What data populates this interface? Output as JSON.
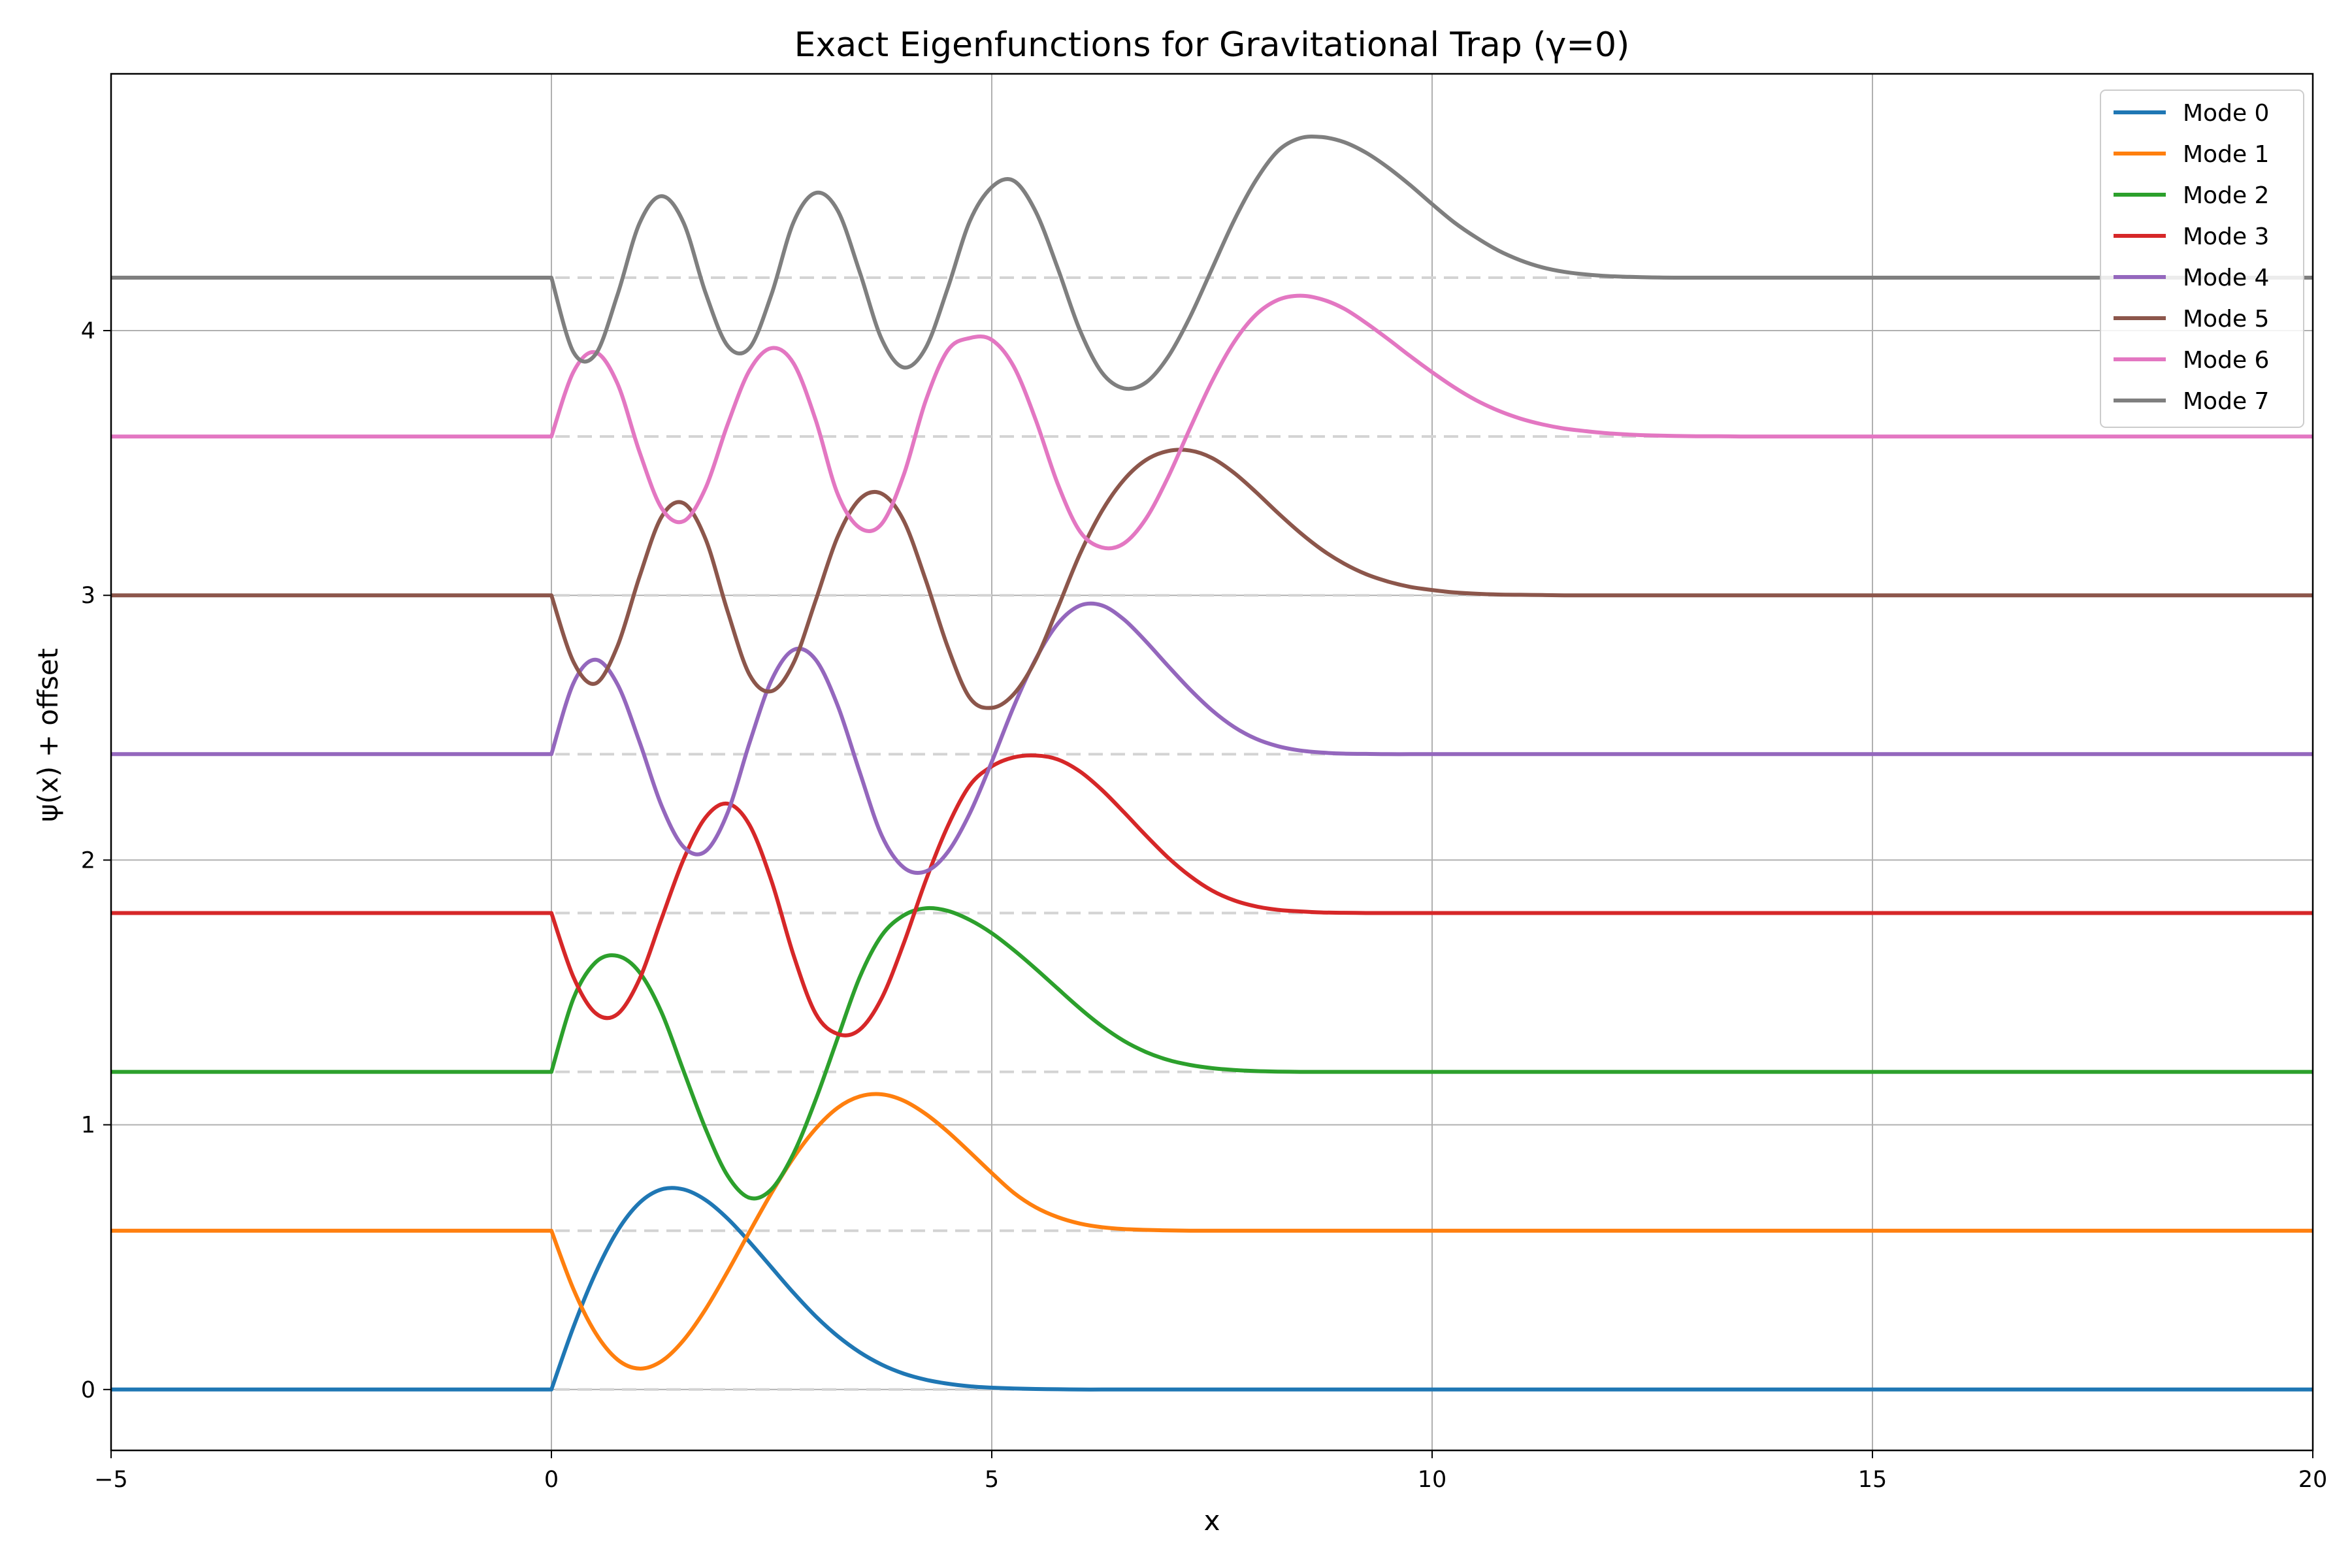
{
  "chart_data": {
    "type": "line",
    "title": "Exact Eigenfunctions for Gravitational Trap (γ=0)",
    "xlabel": "x",
    "ylabel": "ψ(x) + offset",
    "xlim": [
      -5,
      20
    ],
    "ylim": [
      -0.23,
      4.97
    ],
    "xticks": [
      -5,
      0,
      5,
      10,
      15,
      20
    ],
    "xtick_labels": [
      "−5",
      "0",
      "5",
      "10",
      "15",
      "20"
    ],
    "yticks": [
      0,
      1,
      2,
      3,
      4
    ],
    "ytick_labels": [
      "0",
      "1",
      "2",
      "3",
      "4"
    ],
    "grid": true,
    "legend_position": "top-right",
    "baseline_style": "dashed light gray line at each series offset",
    "x": [
      -5,
      -0.001,
      0,
      0.25,
      0.5,
      0.75,
      1.0,
      1.25,
      1.5,
      1.75,
      2.0,
      2.25,
      2.5,
      2.75,
      3.0,
      3.25,
      3.5,
      3.75,
      4.0,
      4.25,
      4.5,
      4.75,
      5.0,
      5.25,
      5.5,
      5.75,
      6.0,
      6.25,
      6.5,
      6.75,
      7.0,
      7.25,
      7.5,
      7.75,
      8.0,
      8.25,
      8.5,
      8.75,
      9.0,
      9.25,
      9.5,
      9.75,
      10.0,
      10.25,
      10.5,
      10.75,
      11.0,
      11.25,
      11.5,
      11.75,
      12.0,
      12.25,
      12.5,
      12.75,
      13.0,
      13.25,
      13.5,
      13.75,
      14.0,
      14.25,
      14.5,
      14.75,
      15.0,
      15.25,
      15.5,
      15.75,
      16.0,
      16.25,
      16.5,
      16.75,
      17.0,
      17.25,
      17.5,
      17.75,
      18.0,
      18.25,
      18.5,
      18.75,
      19.0,
      19.25,
      19.5,
      19.75,
      20.0
    ],
    "series": [
      {
        "name": "Mode 0",
        "offset": 0.0,
        "color": "#1f77b4",
        "values": [
          0,
          0,
          0,
          0.236,
          0.439,
          0.599,
          0.705,
          0.756,
          0.756,
          0.716,
          0.646,
          0.557,
          0.461,
          0.365,
          0.277,
          0.202,
          0.141,
          0.094,
          0.06,
          0.037,
          0.022,
          0.012,
          0.007,
          0.004,
          0.002,
          0.001,
          0.0,
          0.0,
          0.0,
          0.0,
          0.0,
          0.0,
          0.0,
          0.0,
          0.0,
          0.0,
          0.0,
          0.0,
          0.0,
          0.0,
          0.0,
          0.0,
          0.0,
          0.0,
          0.0,
          0.0,
          0.0,
          0.0,
          0.0,
          0.0,
          0.0,
          0.0,
          0.0,
          0.0,
          0.0,
          0.0,
          0.0,
          0.0,
          0.0,
          0.0,
          0.0,
          0.0,
          0.0,
          0.0,
          0.0,
          0.0,
          0.0,
          0.0,
          0.0,
          0.0,
          0.0,
          0.0,
          0.0,
          0.0,
          0.0,
          0.0,
          0.0,
          0.0,
          0.0,
          0.0,
          0.0,
          0.0,
          0.0
        ]
      },
      {
        "name": "Mode 1",
        "offset": 0.6,
        "color": "#ff7f0e",
        "values": [
          0.6,
          0.6,
          0.6,
          0.379,
          0.214,
          0.113,
          0.079,
          0.107,
          0.186,
          0.303,
          0.445,
          0.596,
          0.743,
          0.876,
          0.985,
          1.064,
          1.107,
          1.115,
          1.091,
          1.041,
          0.974,
          0.897,
          0.818,
          0.743,
          0.688,
          0.651,
          0.627,
          0.613,
          0.606,
          0.603,
          0.601,
          0.6,
          0.6,
          0.6,
          0.6,
          0.6,
          0.6,
          0.6,
          0.6,
          0.6,
          0.6,
          0.6,
          0.6,
          0.6,
          0.6,
          0.6,
          0.6,
          0.6,
          0.6,
          0.6,
          0.6,
          0.6,
          0.6,
          0.6,
          0.6,
          0.6,
          0.6,
          0.6,
          0.6,
          0.6,
          0.6,
          0.6,
          0.6,
          0.6,
          0.6,
          0.6,
          0.6,
          0.6,
          0.6,
          0.6,
          0.6,
          0.6,
          0.6,
          0.6,
          0.6,
          0.6,
          0.6,
          0.6,
          0.6,
          0.6,
          0.6,
          0.6,
          0.6
        ]
      },
      {
        "name": "Mode 2",
        "offset": 1.2,
        "color": "#2ca02c",
        "values": [
          1.2,
          1.2,
          1.2,
          1.477,
          1.613,
          1.638,
          1.576,
          1.425,
          1.204,
          0.985,
          0.808,
          0.724,
          0.757,
          0.892,
          1.094,
          1.327,
          1.557,
          1.715,
          1.791,
          1.818,
          1.808,
          1.774,
          1.724,
          1.66,
          1.589,
          1.514,
          1.44,
          1.373,
          1.317,
          1.275,
          1.245,
          1.226,
          1.214,
          1.207,
          1.203,
          1.201,
          1.2,
          1.2,
          1.2,
          1.2,
          1.2,
          1.2,
          1.2,
          1.2,
          1.2,
          1.2,
          1.2,
          1.2,
          1.2,
          1.2,
          1.2,
          1.2,
          1.2,
          1.2,
          1.2,
          1.2,
          1.2,
          1.2,
          1.2,
          1.2,
          1.2,
          1.2,
          1.2,
          1.2,
          1.2,
          1.2,
          1.2,
          1.2,
          1.2,
          1.2,
          1.2,
          1.2,
          1.2,
          1.2,
          1.2,
          1.2,
          1.2,
          1.2,
          1.2,
          1.2,
          1.2,
          1.2,
          1.2
        ]
      },
      {
        "name": "Mode 3",
        "offset": 1.8,
        "color": "#d62728",
        "values": [
          1.8,
          1.8,
          1.8,
          1.558,
          1.422,
          1.418,
          1.55,
          1.778,
          2.002,
          2.161,
          2.213,
          2.132,
          1.92,
          1.64,
          1.42,
          1.343,
          1.359,
          1.478,
          1.685,
          1.922,
          2.128,
          2.282,
          2.354,
          2.388,
          2.395,
          2.38,
          2.335,
          2.265,
          2.181,
          2.093,
          2.01,
          1.94,
          1.885,
          1.848,
          1.825,
          1.812,
          1.806,
          1.802,
          1.801,
          1.8,
          1.8,
          1.8,
          1.8,
          1.8,
          1.8,
          1.8,
          1.8,
          1.8,
          1.8,
          1.8,
          1.8,
          1.8,
          1.8,
          1.8,
          1.8,
          1.8,
          1.8,
          1.8,
          1.8,
          1.8,
          1.8,
          1.8,
          1.8,
          1.8,
          1.8,
          1.8,
          1.8,
          1.8,
          1.8,
          1.8,
          1.8,
          1.8,
          1.8,
          1.8,
          1.8,
          1.8,
          1.8,
          1.8,
          1.8,
          1.8,
          1.8,
          1.8,
          1.8
        ]
      },
      {
        "name": "Mode 4",
        "offset": 2.4,
        "color": "#9467bd",
        "values": [
          2.4,
          2.4,
          2.4,
          2.668,
          2.757,
          2.664,
          2.447,
          2.206,
          2.05,
          2.033,
          2.178,
          2.443,
          2.68,
          2.794,
          2.757,
          2.584,
          2.333,
          2.093,
          1.972,
          1.957,
          2.03,
          2.176,
          2.371,
          2.58,
          2.76,
          2.893,
          2.961,
          2.962,
          2.909,
          2.826,
          2.734,
          2.645,
          2.566,
          2.503,
          2.458,
          2.43,
          2.414,
          2.406,
          2.402,
          2.401,
          2.4,
          2.4,
          2.4,
          2.4,
          2.4,
          2.4,
          2.4,
          2.4,
          2.4,
          2.4,
          2.4,
          2.4,
          2.4,
          2.4,
          2.4,
          2.4,
          2.4,
          2.4,
          2.4,
          2.4,
          2.4,
          2.4,
          2.4,
          2.4,
          2.4,
          2.4,
          2.4,
          2.4,
          2.4,
          2.4,
          2.4,
          2.4,
          2.4,
          2.4,
          2.4,
          2.4,
          2.4,
          2.4,
          2.4,
          2.4,
          2.4,
          2.4,
          2.4
        ]
      },
      {
        "name": "Mode 5",
        "offset": 3.0,
        "color": "#8c564b",
        "values": [
          3.0,
          3.0,
          3.0,
          2.749,
          2.667,
          2.808,
          3.07,
          3.296,
          3.348,
          3.213,
          2.94,
          2.7,
          2.638,
          2.745,
          2.98,
          3.221,
          3.363,
          3.384,
          3.282,
          3.058,
          2.805,
          2.613,
          2.575,
          2.627,
          2.757,
          2.953,
          3.155,
          3.318,
          3.436,
          3.511,
          3.545,
          3.547,
          3.519,
          3.463,
          3.39,
          3.311,
          3.237,
          3.172,
          3.12,
          3.08,
          3.052,
          3.032,
          3.02,
          3.011,
          3.006,
          3.003,
          3.002,
          3.001,
          3.0,
          3.0,
          3.0,
          3.0,
          3.0,
          3.0,
          3.0,
          3.0,
          3.0,
          3.0,
          3.0,
          3.0,
          3.0,
          3.0,
          3.0,
          3.0,
          3.0,
          3.0,
          3.0,
          3.0,
          3.0,
          3.0,
          3.0,
          3.0,
          3.0,
          3.0,
          3.0,
          3.0,
          3.0,
          3.0,
          3.0,
          3.0,
          3.0,
          3.0,
          3.0
        ]
      },
      {
        "name": "Mode 6",
        "offset": 3.6,
        "color": "#e377c2",
        "values": [
          3.6,
          3.6,
          3.6,
          3.844,
          3.918,
          3.8,
          3.542,
          3.33,
          3.28,
          3.405,
          3.645,
          3.85,
          3.934,
          3.876,
          3.663,
          3.383,
          3.255,
          3.27,
          3.455,
          3.735,
          3.925,
          3.972,
          3.965,
          3.864,
          3.662,
          3.42,
          3.242,
          3.181,
          3.196,
          3.289,
          3.445,
          3.63,
          3.808,
          3.956,
          4.06,
          4.116,
          4.132,
          4.118,
          4.083,
          4.029,
          3.968,
          3.904,
          3.843,
          3.786,
          3.737,
          3.698,
          3.668,
          3.646,
          3.63,
          3.62,
          3.612,
          3.607,
          3.604,
          3.602,
          3.601,
          3.601,
          3.6,
          3.6,
          3.6,
          3.6,
          3.6,
          3.6,
          3.6,
          3.6,
          3.6,
          3.6,
          3.6,
          3.6,
          3.6,
          3.6,
          3.6,
          3.6,
          3.6,
          3.6,
          3.6,
          3.6,
          3.6,
          3.6,
          3.6,
          3.6,
          3.6,
          3.6,
          3.6
        ]
      },
      {
        "name": "Mode 7",
        "offset": 4.2,
        "color": "#7f7f7f",
        "values": [
          4.2,
          4.2,
          4.2,
          3.919,
          3.91,
          4.135,
          4.405,
          4.508,
          4.408,
          4.143,
          3.943,
          3.935,
          4.138,
          4.41,
          4.52,
          4.454,
          4.222,
          3.968,
          3.861,
          3.935,
          4.16,
          4.413,
          4.542,
          4.566,
          4.449,
          4.235,
          4.002,
          3.842,
          3.782,
          3.804,
          3.9,
          4.051,
          4.233,
          4.415,
          4.568,
          4.679,
          4.727,
          4.731,
          4.712,
          4.672,
          4.616,
          4.55,
          4.478,
          4.409,
          4.352,
          4.303,
          4.266,
          4.239,
          4.222,
          4.212,
          4.206,
          4.203,
          4.201,
          4.2,
          4.2,
          4.2,
          4.2,
          4.2,
          4.2,
          4.2,
          4.2,
          4.2,
          4.2,
          4.2,
          4.2,
          4.2,
          4.2,
          4.2,
          4.2,
          4.2,
          4.2,
          4.2,
          4.2,
          4.2,
          4.2,
          4.2,
          4.2,
          4.2,
          4.2,
          4.2,
          4.2,
          4.2,
          4.2
        ]
      }
    ]
  },
  "colors": {
    "grid": "#b0b0b0",
    "baseline": "#d3d3d3",
    "axes": "#000000",
    "legend_border": "#cccccc"
  }
}
